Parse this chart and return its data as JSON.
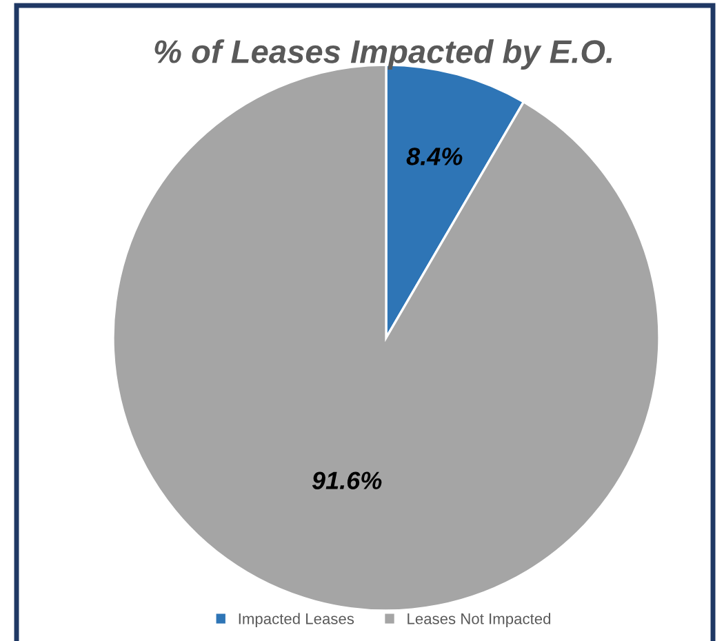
{
  "chart_data": {
    "type": "pie",
    "title": "% of Leases Impacted by E.O.",
    "categories": [
      "Impacted Leases",
      "Leases Not Impacted"
    ],
    "values": [
      8.4,
      91.6
    ],
    "colors": [
      "#2e75b6",
      "#a5a5a5"
    ],
    "value_labels": [
      "8.4%",
      "91.6%"
    ],
    "legend": "bottom"
  }
}
